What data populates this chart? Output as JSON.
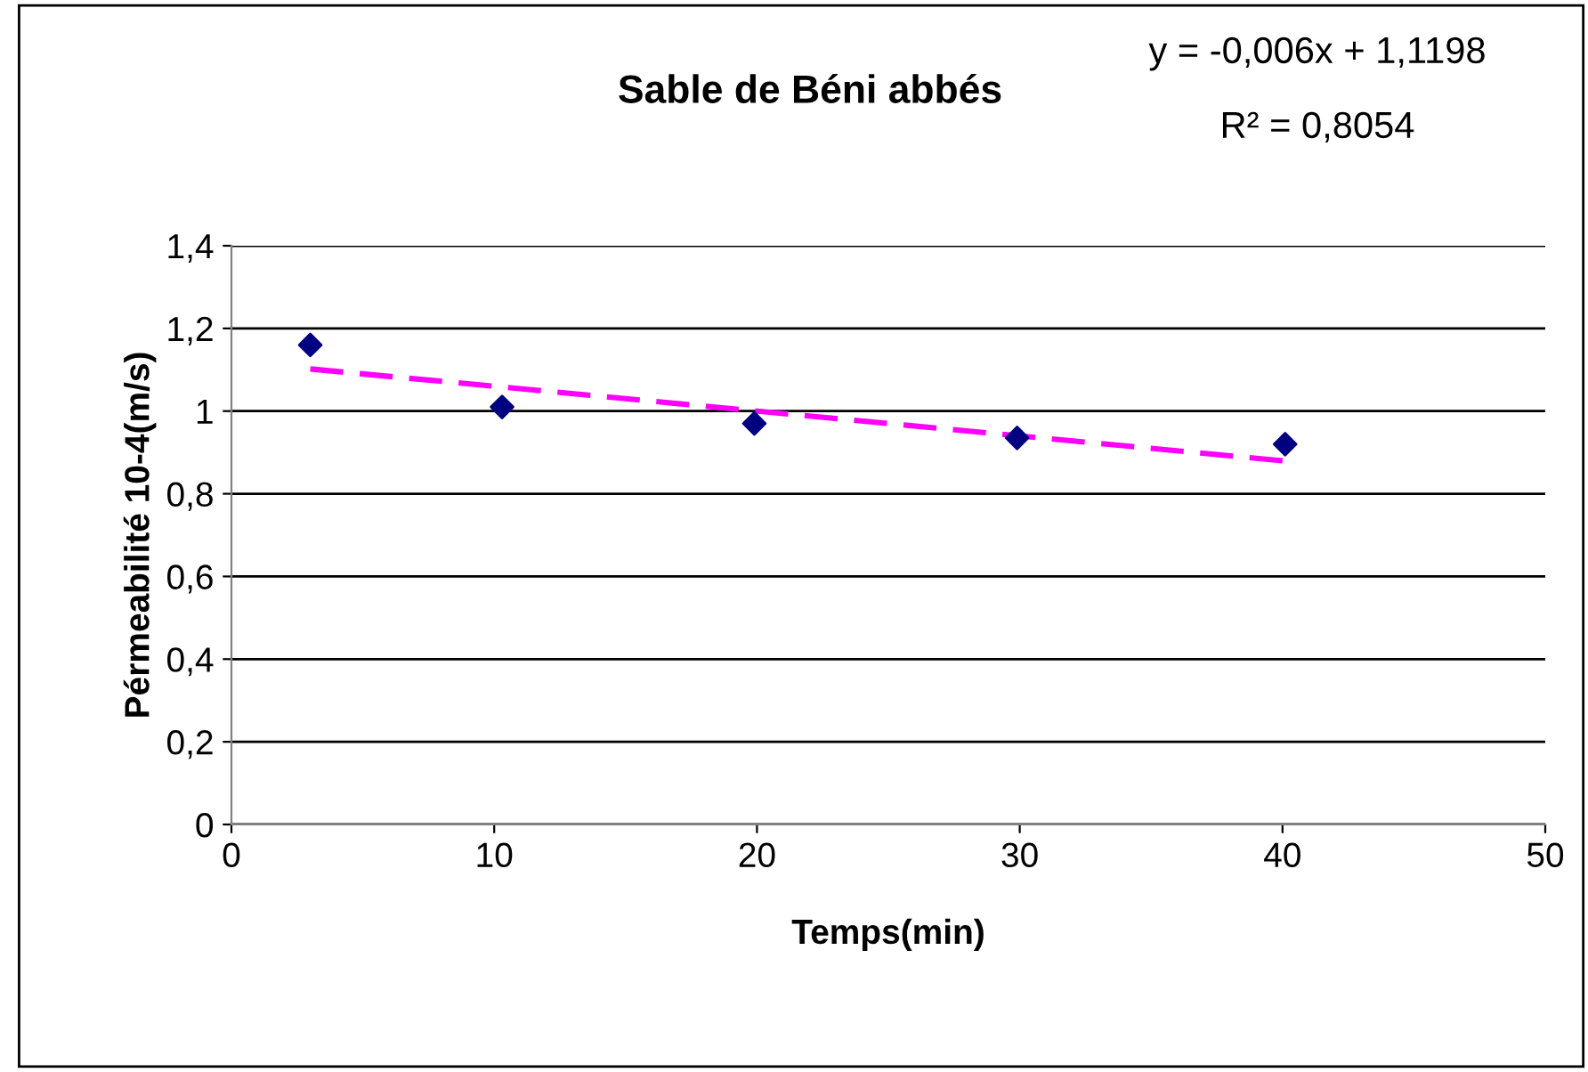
{
  "chart_data": {
    "type": "scatter",
    "title": "Sable de Béni abbés",
    "xlabel": "Temps(min)",
    "ylabel": "Pérmeabilité 10-4(m/s)",
    "annotations": [
      "y = -0,006x + 1,1198",
      "R² = 0,8054"
    ],
    "series": [
      {
        "color": "#000080",
        "marker": "diamond",
        "x": [
          3.0,
          10.3,
          19.9,
          29.9,
          40.1
        ],
        "values": [
          1.16,
          1.01,
          0.97,
          0.935,
          0.92
        ]
      },
      {
        "type": "line",
        "color": "#ff00ff",
        "line_style": "dashed",
        "marker": "none",
        "x": [
          3,
          40
        ],
        "values": [
          1.102,
          0.88
        ]
      }
    ],
    "xlim": [
      0,
      50
    ],
    "xticks": [
      0,
      10,
      20,
      30,
      40,
      50
    ],
    "ylim": [
      0,
      1.4
    ],
    "yticks": [
      0,
      {
        "value": 0.2,
        "label": "0,2"
      },
      {
        "value": 0.4,
        "label": "0,4"
      },
      {
        "value": 0.6,
        "label": "0,6"
      },
      {
        "value": 0.8,
        "label": "0,8"
      },
      1,
      {
        "value": 1.2,
        "label": "1,2"
      },
      {
        "value": 1.4,
        "label": "1,4"
      }
    ],
    "grid": "y",
    "legend": false
  }
}
